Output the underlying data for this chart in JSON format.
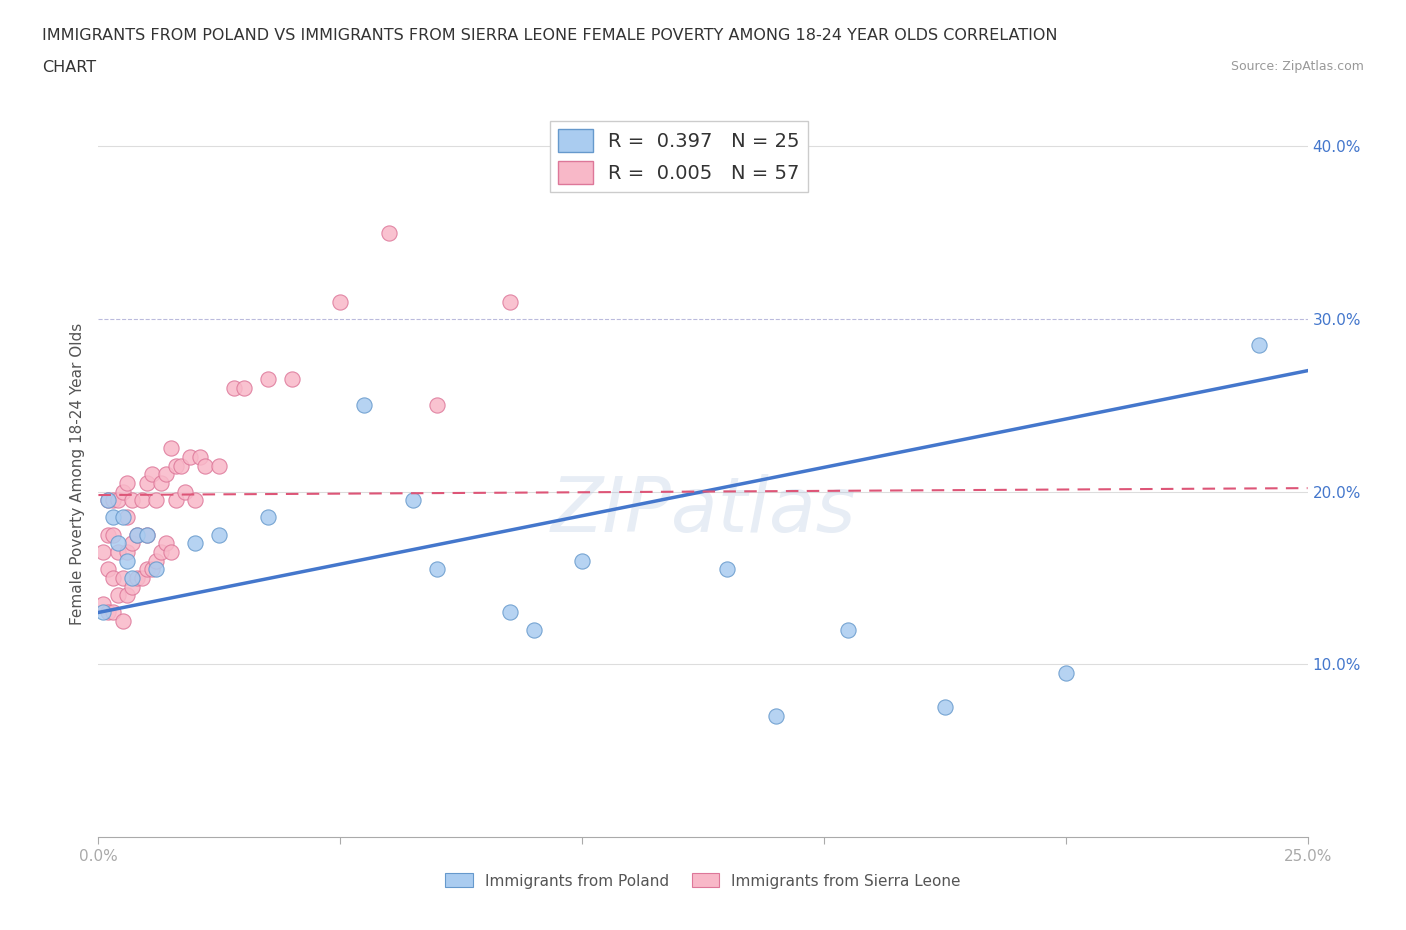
{
  "title_line1": "IMMIGRANTS FROM POLAND VS IMMIGRANTS FROM SIERRA LEONE FEMALE POVERTY AMONG 18-24 YEAR OLDS CORRELATION",
  "title_line2": "CHART",
  "source": "Source: ZipAtlas.com",
  "ylabel": "Female Poverty Among 18-24 Year Olds",
  "xlim": [
    0.0,
    0.25
  ],
  "ylim": [
    0.0,
    0.42
  ],
  "xticks": [
    0.0,
    0.05,
    0.1,
    0.15,
    0.2,
    0.25
  ],
  "yticks": [
    0.0,
    0.1,
    0.2,
    0.3,
    0.4
  ],
  "ytick_labels": [
    "",
    "10.0%",
    "20.0%",
    "30.0%",
    "40.0%"
  ],
  "xtick_labels": [
    "0.0%",
    "",
    "",
    "",
    "",
    "25.0%"
  ],
  "poland_color": "#aaccf0",
  "poland_edge_color": "#6699cc",
  "sierra_leone_color": "#f8b8c8",
  "sierra_leone_edge_color": "#dd7799",
  "trend_poland_color": "#4477cc",
  "trend_sierra_leone_color": "#dd5577",
  "legend_poland_label": "R =  0.397   N = 25",
  "legend_sierra_leone_label": "R =  0.005   N = 57",
  "bottom_legend_poland": "Immigrants from Poland",
  "bottom_legend_sierra": "Immigrants from Sierra Leone",
  "watermark": "ZIPatlas",
  "poland_x": [
    0.001,
    0.002,
    0.003,
    0.004,
    0.005,
    0.006,
    0.007,
    0.008,
    0.01,
    0.012,
    0.02,
    0.025,
    0.035,
    0.055,
    0.065,
    0.07,
    0.085,
    0.09,
    0.1,
    0.13,
    0.14,
    0.155,
    0.175,
    0.2,
    0.24
  ],
  "poland_y": [
    0.13,
    0.195,
    0.185,
    0.17,
    0.185,
    0.16,
    0.15,
    0.175,
    0.175,
    0.155,
    0.17,
    0.175,
    0.185,
    0.25,
    0.195,
    0.155,
    0.13,
    0.12,
    0.16,
    0.155,
    0.07,
    0.12,
    0.075,
    0.095,
    0.285
  ],
  "sierra_leone_x": [
    0.001,
    0.001,
    0.002,
    0.002,
    0.002,
    0.002,
    0.003,
    0.003,
    0.003,
    0.003,
    0.004,
    0.004,
    0.004,
    0.005,
    0.005,
    0.005,
    0.006,
    0.006,
    0.006,
    0.006,
    0.007,
    0.007,
    0.007,
    0.008,
    0.008,
    0.009,
    0.009,
    0.01,
    0.01,
    0.01,
    0.011,
    0.011,
    0.012,
    0.012,
    0.013,
    0.013,
    0.014,
    0.014,
    0.015,
    0.015,
    0.016,
    0.016,
    0.017,
    0.018,
    0.019,
    0.02,
    0.021,
    0.022,
    0.025,
    0.028,
    0.03,
    0.035,
    0.04,
    0.05,
    0.06,
    0.07,
    0.085
  ],
  "sierra_leone_y": [
    0.135,
    0.165,
    0.13,
    0.155,
    0.175,
    0.195,
    0.13,
    0.15,
    0.175,
    0.195,
    0.14,
    0.165,
    0.195,
    0.125,
    0.15,
    0.2,
    0.14,
    0.165,
    0.185,
    0.205,
    0.145,
    0.17,
    0.195,
    0.15,
    0.175,
    0.15,
    0.195,
    0.155,
    0.175,
    0.205,
    0.155,
    0.21,
    0.16,
    0.195,
    0.165,
    0.205,
    0.17,
    0.21,
    0.165,
    0.225,
    0.195,
    0.215,
    0.215,
    0.2,
    0.22,
    0.195,
    0.22,
    0.215,
    0.215,
    0.26,
    0.26,
    0.265,
    0.265,
    0.31,
    0.35,
    0.25,
    0.31
  ],
  "trend_poland_x0": 0.0,
  "trend_poland_y0": 0.13,
  "trend_poland_x1": 0.25,
  "trend_poland_y1": 0.27,
  "trend_sierra_x0": 0.0,
  "trend_sierra_y0": 0.198,
  "trend_sierra_x1": 0.25,
  "trend_sierra_y1": 0.202,
  "grid_color": "#dddddd",
  "background_color": "#ffffff",
  "tick_color": "#aaaaaa",
  "right_ytick_color": "#4477cc"
}
